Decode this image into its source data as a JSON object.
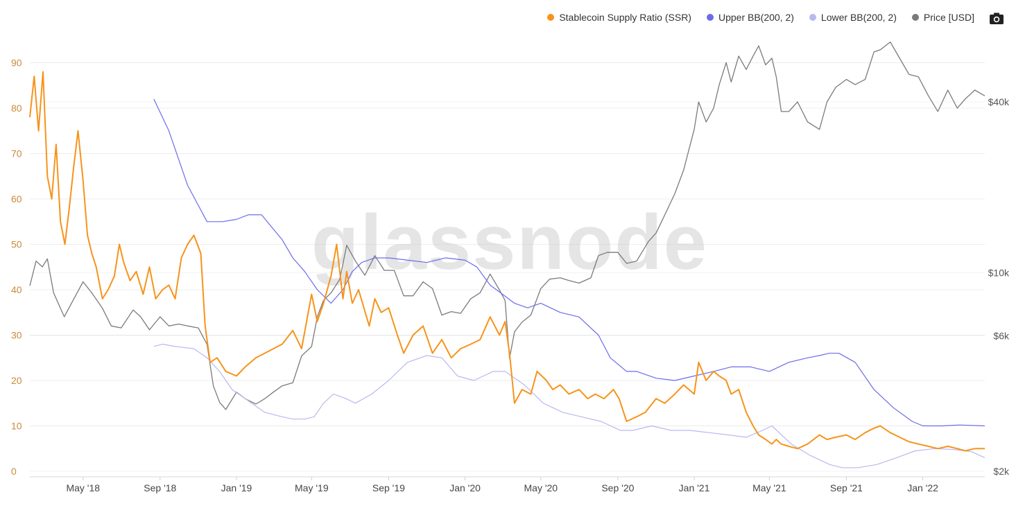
{
  "legend": {
    "items": [
      {
        "label": "Stablecoin Supply Ratio (SSR)",
        "color": "#f7931a"
      },
      {
        "label": "Upper BB(200, 2)",
        "color": "#6b6bea"
      },
      {
        "label": "Lower BB(200, 2)",
        "color": "#b7b9f0"
      },
      {
        "label": "Price [USD]",
        "color": "#7a7a7a"
      }
    ]
  },
  "toolbar": {
    "camera_icon": "camera-icon"
  },
  "watermark": "glassnode",
  "chart_data": {
    "type": "line",
    "legend_position": "top-right",
    "grid": true,
    "x_labels": [
      "May '18",
      "Sep '18",
      "Jan '19",
      "May '19",
      "Sep '19",
      "Jan '20",
      "May '20",
      "Sep '20",
      "Jan '21",
      "May '21",
      "Sep '21",
      "Jan '22"
    ],
    "x_range": [
      "2018-02-05",
      "2022-04-10"
    ],
    "y_left": {
      "ticks": [
        "0",
        "10",
        "20",
        "30",
        "40",
        "50",
        "60",
        "70",
        "80",
        "90"
      ],
      "range": [
        0,
        100
      ],
      "color": "#c98a3a"
    },
    "y_right": {
      "ticks": [
        "$2k",
        "$6k",
        "$10k",
        "$40k"
      ],
      "scale": "log",
      "range_usd": [
        2000,
        60000
      ],
      "tick_values": [
        2000,
        6000,
        10000,
        40000
      ]
    },
    "series": [
      {
        "name": "Stablecoin Supply Ratio (SSR)",
        "color": "#f7931a",
        "axis": "left",
        "x": [
          "2018-02-05",
          "2018-02-12",
          "2018-02-19",
          "2018-02-26",
          "2018-03-05",
          "2018-03-12",
          "2018-03-19",
          "2018-03-26",
          "2018-04-02",
          "2018-04-09",
          "2018-04-16",
          "2018-04-23",
          "2018-05-01",
          "2018-05-08",
          "2018-05-15",
          "2018-05-22",
          "2018-06-01",
          "2018-06-10",
          "2018-06-20",
          "2018-06-28",
          "2018-07-05",
          "2018-07-15",
          "2018-07-25",
          "2018-08-05",
          "2018-08-15",
          "2018-08-25",
          "2018-09-05",
          "2018-09-15",
          "2018-09-25",
          "2018-10-05",
          "2018-10-15",
          "2018-10-25",
          "2018-11-05",
          "2018-11-12",
          "2018-11-20",
          "2018-12-01",
          "2018-12-15",
          "2019-01-01",
          "2019-01-15",
          "2019-02-01",
          "2019-02-15",
          "2019-03-01",
          "2019-03-15",
          "2019-04-01",
          "2019-04-15",
          "2019-05-01",
          "2019-05-10",
          "2019-05-20",
          "2019-06-01",
          "2019-06-10",
          "2019-06-20",
          "2019-06-26",
          "2019-07-05",
          "2019-07-15",
          "2019-08-01",
          "2019-08-10",
          "2019-08-20",
          "2019-09-01",
          "2019-09-15",
          "2019-09-25",
          "2019-10-10",
          "2019-10-26",
          "2019-11-10",
          "2019-11-25",
          "2019-12-10",
          "2019-12-25",
          "2020-01-10",
          "2020-01-25",
          "2020-02-10",
          "2020-02-25",
          "2020-03-05",
          "2020-03-12",
          "2020-03-20",
          "2020-04-01",
          "2020-04-15",
          "2020-04-25",
          "2020-05-10",
          "2020-05-20",
          "2020-06-01",
          "2020-06-15",
          "2020-07-01",
          "2020-07-15",
          "2020-07-27",
          "2020-08-10",
          "2020-08-25",
          "2020-09-03",
          "2020-09-15",
          "2020-10-01",
          "2020-10-15",
          "2020-11-01",
          "2020-11-15",
          "2020-12-01",
          "2020-12-15",
          "2021-01-01",
          "2021-01-08",
          "2021-01-20",
          "2021-02-01",
          "2021-02-10",
          "2021-02-21",
          "2021-03-01",
          "2021-03-13",
          "2021-03-25",
          "2021-04-05",
          "2021-04-14",
          "2021-04-25",
          "2021-05-05",
          "2021-05-12",
          "2021-05-20",
          "2021-06-01",
          "2021-06-15",
          "2021-07-01",
          "2021-07-20",
          "2021-08-01",
          "2021-08-15",
          "2021-09-01",
          "2021-09-15",
          "2021-10-01",
          "2021-10-15",
          "2021-10-25",
          "2021-11-10",
          "2021-11-25",
          "2021-12-10",
          "2021-12-25",
          "2022-01-10",
          "2022-01-25",
          "2022-02-10",
          "2022-02-25",
          "2022-03-10",
          "2022-03-25",
          "2022-04-10"
        ],
        "y": [
          78,
          87,
          75,
          88,
          65,
          60,
          72,
          55,
          50,
          58,
          67,
          75,
          64,
          52,
          48,
          45,
          38,
          40,
          43,
          50,
          46,
          42,
          44,
          39,
          45,
          38,
          40,
          41,
          38,
          47,
          50,
          52,
          48,
          32,
          24,
          25,
          22,
          21,
          23,
          25,
          26,
          27,
          28,
          31,
          27,
          39,
          33,
          37,
          43,
          50,
          38,
          44,
          37,
          40,
          32,
          38,
          35,
          36,
          30,
          26,
          30,
          32,
          26,
          29,
          25,
          27,
          28,
          29,
          34,
          30,
          33,
          26,
          15,
          18,
          17,
          22,
          20,
          18,
          19,
          17,
          18,
          16,
          17,
          16,
          18,
          16,
          11,
          12,
          13,
          16,
          15,
          17,
          19,
          17,
          24,
          20,
          22,
          21,
          20,
          17,
          18,
          13,
          10,
          8,
          7,
          6,
          7,
          6,
          5.5,
          5,
          6,
          8,
          7,
          7.5,
          8,
          7,
          8.5,
          9.5,
          10,
          8.5,
          7.5,
          6.5,
          6,
          5.5,
          5,
          5.5,
          5,
          4.5,
          5,
          5
        ]
      },
      {
        "name": "Upper BB(200, 2)",
        "color": "#6b6bea",
        "axis": "left",
        "x": [
          "2018-08-22",
          "2018-09-15",
          "2018-10-15",
          "2018-11-15",
          "2018-12-10",
          "2019-01-01",
          "2019-01-20",
          "2019-02-10",
          "2019-02-25",
          "2019-03-15",
          "2019-04-01",
          "2019-04-20",
          "2019-05-10",
          "2019-06-01",
          "2019-06-20",
          "2019-07-05",
          "2019-07-20",
          "2019-08-10",
          "2019-09-01",
          "2019-10-01",
          "2019-11-01",
          "2019-12-01",
          "2020-01-01",
          "2020-01-20",
          "2020-02-10",
          "2020-03-01",
          "2020-03-20",
          "2020-04-10",
          "2020-05-01",
          "2020-06-01",
          "2020-07-01",
          "2020-08-01",
          "2020-08-20",
          "2020-09-15",
          "2020-10-01",
          "2020-11-01",
          "2020-12-01",
          "2021-01-01",
          "2021-02-01",
          "2021-03-01",
          "2021-04-01",
          "2021-05-01",
          "2021-06-01",
          "2021-07-01",
          "2021-07-20",
          "2021-08-05",
          "2021-08-20",
          "2021-09-15",
          "2021-10-15",
          "2021-11-15",
          "2021-12-15",
          "2022-01-01",
          "2022-02-01",
          "2022-03-01",
          "2022-04-10"
        ],
        "y": [
          82,
          75,
          63,
          55,
          55,
          55.5,
          56.5,
          56.5,
          54,
          51,
          47,
          44,
          40,
          37,
          40,
          44,
          46,
          47,
          47,
          46.5,
          46,
          47,
          46.5,
          45,
          41,
          39,
          37,
          36,
          37,
          35,
          34,
          30,
          25,
          22,
          22,
          20.5,
          20,
          21,
          22,
          23,
          23,
          22,
          24,
          25,
          25.5,
          26,
          26,
          24,
          18,
          14,
          11,
          10,
          10,
          10.2,
          10
        ]
      },
      {
        "name": "Lower BB(200, 2)",
        "color": "#b7b9f0",
        "axis": "left",
        "x": [
          "2018-08-22",
          "2018-09-05",
          "2018-09-25",
          "2018-10-25",
          "2018-11-15",
          "2018-12-05",
          "2018-12-25",
          "2019-01-15",
          "2019-02-15",
          "2019-03-15",
          "2019-04-01",
          "2019-04-20",
          "2019-05-05",
          "2019-05-20",
          "2019-06-05",
          "2019-06-25",
          "2019-07-10",
          "2019-08-05",
          "2019-09-01",
          "2019-10-01",
          "2019-11-01",
          "2019-11-25",
          "2019-12-20",
          "2020-01-15",
          "2020-02-15",
          "2020-03-05",
          "2020-04-05",
          "2020-05-05",
          "2020-06-05",
          "2020-07-05",
          "2020-08-05",
          "2020-09-05",
          "2020-09-25",
          "2020-10-25",
          "2020-11-25",
          "2020-12-25",
          "2021-01-25",
          "2021-02-25",
          "2021-03-25",
          "2021-04-20",
          "2021-05-05",
          "2021-06-05",
          "2021-07-05",
          "2021-08-05",
          "2021-08-25",
          "2021-09-20",
          "2021-10-20",
          "2021-11-20",
          "2021-12-20",
          "2022-01-20",
          "2022-02-20",
          "2022-03-20",
          "2022-04-10"
        ],
        "y": [
          27.5,
          28,
          27.5,
          27,
          25,
          22,
          18,
          16,
          13,
          12,
          11.5,
          11.5,
          12,
          15,
          17,
          16,
          15,
          17,
          20,
          24,
          25.5,
          25,
          21,
          20,
          22,
          22,
          19,
          15,
          13,
          12,
          11,
          9,
          9,
          10,
          9,
          9,
          8.5,
          8,
          7.5,
          9,
          10,
          6,
          3.5,
          1.5,
          0.8,
          0.8,
          1.5,
          3,
          4.5,
          5,
          4.8,
          4.3,
          3
        ]
      },
      {
        "name": "Price [USD]",
        "color": "#7a7a7a",
        "axis": "right",
        "x": [
          "2018-02-05",
          "2018-02-15",
          "2018-02-25",
          "2018-03-05",
          "2018-03-15",
          "2018-04-01",
          "2018-04-15",
          "2018-05-01",
          "2018-05-15",
          "2018-06-01",
          "2018-06-15",
          "2018-07-01",
          "2018-07-20",
          "2018-08-01",
          "2018-08-15",
          "2018-09-01",
          "2018-09-15",
          "2018-10-01",
          "2018-10-15",
          "2018-11-01",
          "2018-11-15",
          "2018-11-25",
          "2018-12-05",
          "2018-12-15",
          "2019-01-01",
          "2019-01-15",
          "2019-02-01",
          "2019-02-15",
          "2019-03-01",
          "2019-03-15",
          "2019-04-01",
          "2019-04-15",
          "2019-05-01",
          "2019-05-10",
          "2019-05-20",
          "2019-06-01",
          "2019-06-15",
          "2019-06-26",
          "2019-07-10",
          "2019-07-25",
          "2019-08-10",
          "2019-08-25",
          "2019-09-10",
          "2019-09-25",
          "2019-10-10",
          "2019-10-26",
          "2019-11-10",
          "2019-11-25",
          "2019-12-10",
          "2019-12-25",
          "2020-01-10",
          "2020-01-25",
          "2020-02-10",
          "2020-02-25",
          "2020-03-05",
          "2020-03-12",
          "2020-03-20",
          "2020-04-01",
          "2020-04-15",
          "2020-05-01",
          "2020-05-15",
          "2020-06-01",
          "2020-06-15",
          "2020-07-01",
          "2020-07-20",
          "2020-08-01",
          "2020-08-15",
          "2020-09-01",
          "2020-09-15",
          "2020-10-01",
          "2020-10-20",
          "2020-11-01",
          "2020-11-15",
          "2020-12-01",
          "2020-12-15",
          "2021-01-01",
          "2021-01-08",
          "2021-01-20",
          "2021-02-01",
          "2021-02-10",
          "2021-02-21",
          "2021-03-01",
          "2021-03-13",
          "2021-03-25",
          "2021-04-05",
          "2021-04-14",
          "2021-04-25",
          "2021-05-05",
          "2021-05-12",
          "2021-05-20",
          "2021-06-01",
          "2021-06-15",
          "2021-07-01",
          "2021-07-20",
          "2021-08-01",
          "2021-08-15",
          "2021-09-01",
          "2021-09-15",
          "2021-10-01",
          "2021-10-15",
          "2021-10-25",
          "2021-11-10",
          "2021-11-25",
          "2021-12-10",
          "2021-12-25",
          "2022-01-10",
          "2022-01-25",
          "2022-02-10",
          "2022-02-25",
          "2022-03-10",
          "2022-03-25",
          "2022-04-10"
        ],
        "y": [
          9000,
          11000,
          10500,
          11200,
          8500,
          7000,
          8000,
          9300,
          8500,
          7500,
          6500,
          6400,
          7400,
          7000,
          6300,
          7000,
          6500,
          6600,
          6500,
          6400,
          5600,
          4000,
          3500,
          3300,
          3800,
          3600,
          3450,
          3600,
          3800,
          4000,
          4100,
          5100,
          5500,
          7000,
          8000,
          8500,
          9500,
          12500,
          11000,
          9800,
          11500,
          10200,
          10200,
          8300,
          8300,
          9300,
          8800,
          7100,
          7300,
          7200,
          8100,
          8500,
          9900,
          8700,
          8000,
          5000,
          6200,
          6700,
          7100,
          8800,
          9500,
          9600,
          9400,
          9200,
          9600,
          11500,
          11800,
          11800,
          10800,
          11000,
          12900,
          13800,
          16000,
          19000,
          23000,
          32000,
          40000,
          34000,
          38000,
          46000,
          55000,
          47000,
          58000,
          52000,
          58000,
          63000,
          54000,
          57000,
          49000,
          37000,
          37000,
          40000,
          34000,
          32000,
          40000,
          45000,
          48000,
          46000,
          48000,
          60000,
          61000,
          65000,
          57000,
          50000,
          49000,
          42000,
          37000,
          44000,
          38000,
          41000,
          44000,
          42000
        ]
      }
    ]
  }
}
